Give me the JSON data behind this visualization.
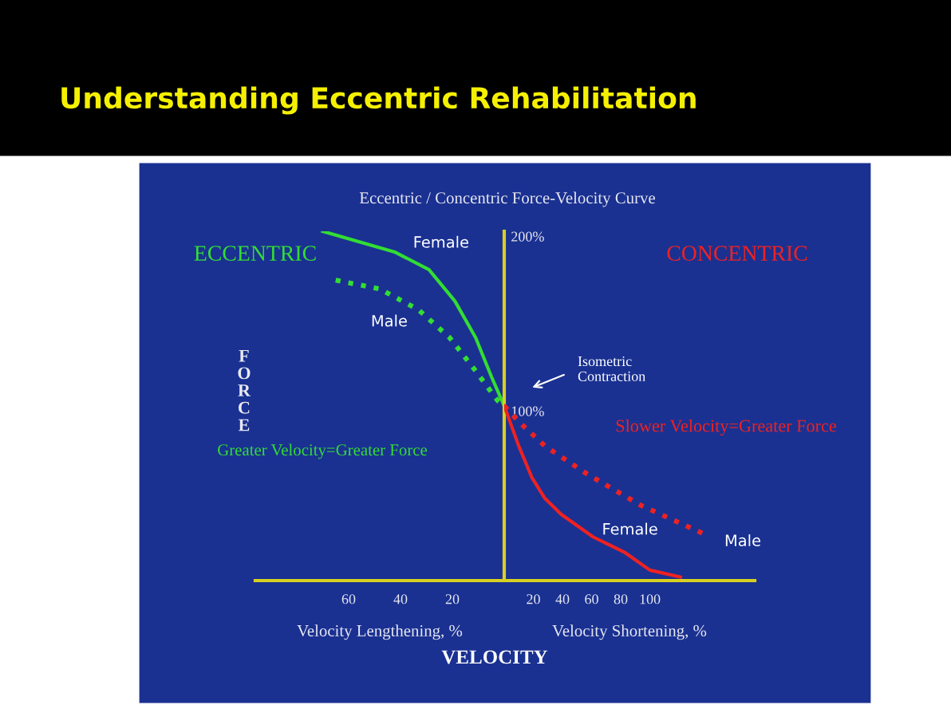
{
  "chart_data": [
    {
      "type": "line",
      "title": "Understanding Eccentric Rehabilitation",
      "subtitle": "Eccentric / Concentric Force-Velocity Curve",
      "xlabel": "Velocity Lengthening, %",
      "ylabel": "FORCE",
      "annotations": [
        "ECCENTRIC",
        "Greater Velocity=Greater Force",
        "VELOCITY"
      ],
      "xlim": [
        96,
        0
      ],
      "xticks": [
        60,
        40,
        20
      ],
      "ylim": [
        0,
        200
      ],
      "tick_labels": "x",
      "grid": false,
      "series": [
        {
          "name": "Female",
          "color": "#33dd33",
          "line_style": "solid",
          "x": [
            70,
            42,
            29,
            19,
            11,
            5,
            0
          ],
          "values": [
            200,
            188,
            178,
            160,
            139,
            117,
            100
          ]
        },
        {
          "name": "Male",
          "color": "#33dd33",
          "line_style": "dotted",
          "x": [
            65,
            48,
            33,
            21,
            11,
            2.5,
            0
          ],
          "values": [
            172,
            167,
            155,
            139,
            120,
            103,
            100
          ]
        }
      ]
    },
    {
      "type": "line",
      "xlabel": "Velocity Shortening, %",
      "annotations": [
        "CONCENTRIC",
        "Slower Velocity=Greater Force",
        "Isometric Contraction"
      ],
      "xlim": [
        0,
        172
      ],
      "xticks": [
        20,
        40,
        60,
        80,
        100
      ],
      "ylim": [
        0,
        200
      ],
      "yticks": [
        {
          "value": 100,
          "label": "100%"
        },
        {
          "value": 200,
          "label": "200%"
        }
      ],
      "grid": false,
      "series": [
        {
          "name": "Female",
          "color": "#ee2222",
          "line_style": "solid",
          "x": [
            0,
            10,
            19,
            28,
            39,
            61,
            83,
            100,
            121
          ],
          "values": [
            100,
            77,
            59,
            47,
            38,
            25,
            16,
            6,
            2
          ]
        },
        {
          "name": "Male",
          "color": "#ee2222",
          "line_style": "dotted",
          "x": [
            0,
            10,
            28,
            57,
            94,
            139
          ],
          "values": [
            100,
            91,
            77,
            61,
            43,
            26
          ]
        }
      ]
    }
  ]
}
